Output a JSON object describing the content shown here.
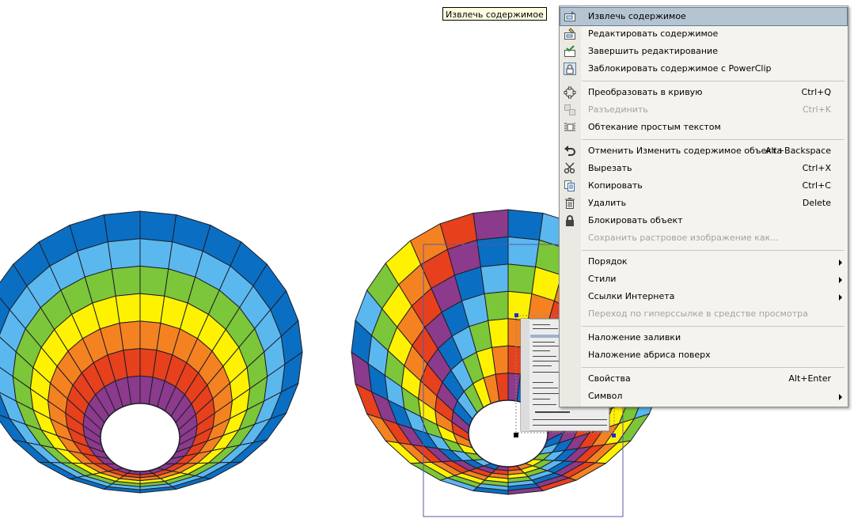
{
  "tooltip": "Извлечь содержимое",
  "menu": {
    "items": [
      {
        "label": "Извлечь содержимое",
        "shortcut": "",
        "icon": "extract-contents-icon",
        "highlighted": true
      },
      {
        "label": "Редактировать содержимое",
        "shortcut": "",
        "icon": "edit-contents-icon"
      },
      {
        "label": "Завершить редактирование",
        "shortcut": "",
        "icon": "finish-editing-icon"
      },
      {
        "label": "Заблокировать содержимое с PowerClip",
        "shortcut": "",
        "icon": "lock-powerclip-icon"
      },
      {
        "label": "Преобразовать в кривую",
        "shortcut": "Ctrl+Q",
        "icon": "convert-to-curves-icon"
      },
      {
        "label": "Разъединить",
        "shortcut": "Ctrl+K",
        "icon": "break-apart-icon",
        "disabled": true
      },
      {
        "label": "Обтекание простым текстом",
        "shortcut": "",
        "icon": "wrap-text-icon"
      },
      {
        "label": "Отменить Изменить содержимое объекта",
        "shortcut": "Alt+Backspace",
        "icon": "undo-icon"
      },
      {
        "label": "Вырезать",
        "shortcut": "Ctrl+X",
        "icon": "scissors-icon"
      },
      {
        "label": "Копировать",
        "shortcut": "Ctrl+C",
        "icon": "copy-icon"
      },
      {
        "label": "Удалить",
        "shortcut": "Delete",
        "icon": "trash-icon"
      },
      {
        "label": "Блокировать объект",
        "shortcut": "",
        "icon": "lock-icon"
      },
      {
        "label": "Сохранить растровое изображение как...",
        "shortcut": "",
        "disabled": true
      },
      {
        "label": "Порядок",
        "shortcut": "",
        "submenu": true
      },
      {
        "label": "Стили",
        "shortcut": "",
        "submenu": true
      },
      {
        "label": "Ссылки Интернета",
        "shortcut": "",
        "submenu": true
      },
      {
        "label": "Переход по гиперссылке в средстве просмотра",
        "shortcut": "",
        "disabled": true
      },
      {
        "label": "Наложение заливки",
        "shortcut": ""
      },
      {
        "label": "Наложение абриса поверх",
        "shortcut": ""
      },
      {
        "label": "Свойства",
        "shortcut": "Alt+Enter"
      },
      {
        "label": "Символ",
        "shortcut": "",
        "submenu": true
      }
    ]
  },
  "colors": {
    "balloon_bands": [
      "#0a6fc2",
      "#5bb8ef",
      "#7cc63a",
      "#fff200",
      "#f58220",
      "#e7401c",
      "#8b3a8c"
    ],
    "highlight": "#b5c4d1",
    "menu_bg": "#f5f3ee"
  }
}
